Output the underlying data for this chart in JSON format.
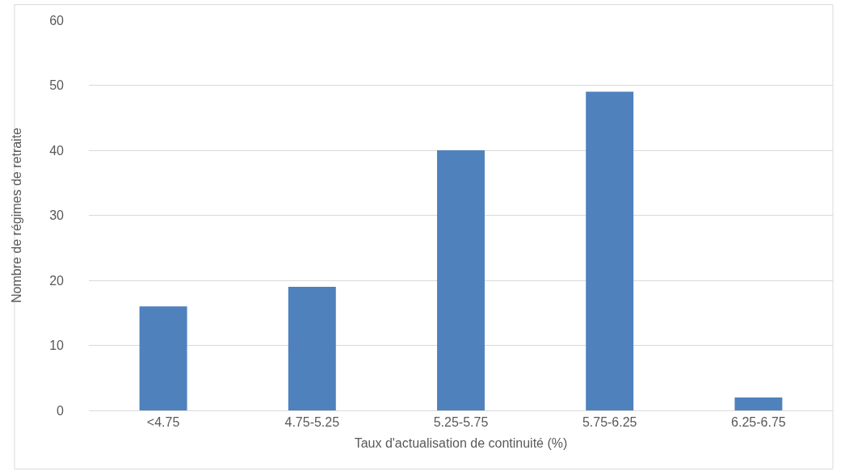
{
  "chart_data": {
    "type": "bar",
    "xlabel": "Taux d'actualisation de continuité (%)",
    "ylabel": "Nombre de régimes de retraite",
    "categories": [
      "<4.75",
      "4.75-5.25",
      "5.25-5.75",
      "5.75-6.25",
      "6.25-6.75"
    ],
    "values": [
      16,
      19,
      40,
      49,
      2
    ],
    "color": "#4f81bd",
    "ylim": [
      0,
      60
    ],
    "yticks": [
      0,
      10,
      20,
      30,
      40,
      50,
      60
    ],
    "grid": "y",
    "legend": false
  }
}
